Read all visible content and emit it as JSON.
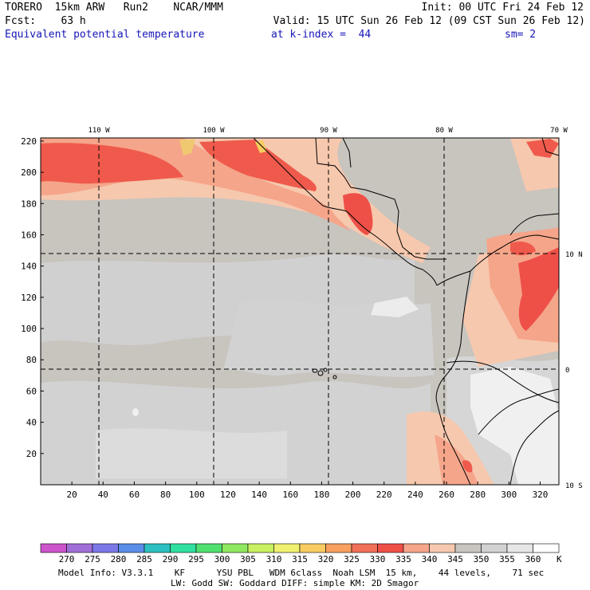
{
  "header": {
    "left_line1": "TORERO  15km ARW   Run2    NCAR/MMM",
    "left_line2": "Fcst:    63 h",
    "right_line1": "Init: 00 UTC Fri 24 Feb 12",
    "right_line2": "Valid: 15 UTC Sun 26 Feb 12 (09 CST Sun 26 Feb 12)",
    "field_name": "Equivalent potential temperature",
    "level": "at k-index =  44",
    "smoothing": "sm= 2"
  },
  "map": {
    "x_ticks": [
      "20",
      "40",
      "60",
      "80",
      "100",
      "120",
      "140",
      "160",
      "180",
      "200",
      "220",
      "240",
      "260",
      "280",
      "300",
      "320"
    ],
    "y_ticks": [
      "20",
      "40",
      "60",
      "80",
      "100",
      "120",
      "140",
      "160",
      "180",
      "200",
      "220"
    ],
    "lon_labels": [
      "110 W",
      "100 W",
      "90 W",
      "80 W",
      "70 W"
    ],
    "lat_labels": [
      "10 N",
      "0",
      "10 S"
    ],
    "colors": {
      "bg": "#c8c4be",
      "gray_light": "#d2d2d2",
      "gray_lighter": "#e2e2e2",
      "white_area": "#f0f0f0",
      "peach": "#f6c8ae",
      "salmon": "#f5a58a",
      "red": "#ef5a4c",
      "dark_red": "#e84a3e",
      "yellow": "#f0c870"
    }
  },
  "colorbar": {
    "units": "K",
    "labels": [
      "270",
      "275",
      "280",
      "285",
      "290",
      "295",
      "300",
      "305",
      "310",
      "315",
      "320",
      "325",
      "330",
      "335",
      "340",
      "345",
      "350",
      "355",
      "360"
    ],
    "colors": [
      "#cc55cc",
      "#a070d8",
      "#7c78e8",
      "#5a8ee8",
      "#2ec0c0",
      "#30e0a0",
      "#50e070",
      "#90e860",
      "#c8f060",
      "#f0f070",
      "#f8cc60",
      "#f8a060",
      "#f07058",
      "#ee5048",
      "#f5a58a",
      "#f6c8ae",
      "#c8c4be",
      "#d2d2d2",
      "#e6e6e6",
      "#ffffff"
    ]
  },
  "footer": {
    "line1": "Model Info: V3.3.1    KF      YSU PBL   WDM 6class  Noah LSM  15 km,    44 levels,    71 sec",
    "line2": "LW: Godd SW: Goddard DIFF: simple KM: 2D Smagor"
  }
}
